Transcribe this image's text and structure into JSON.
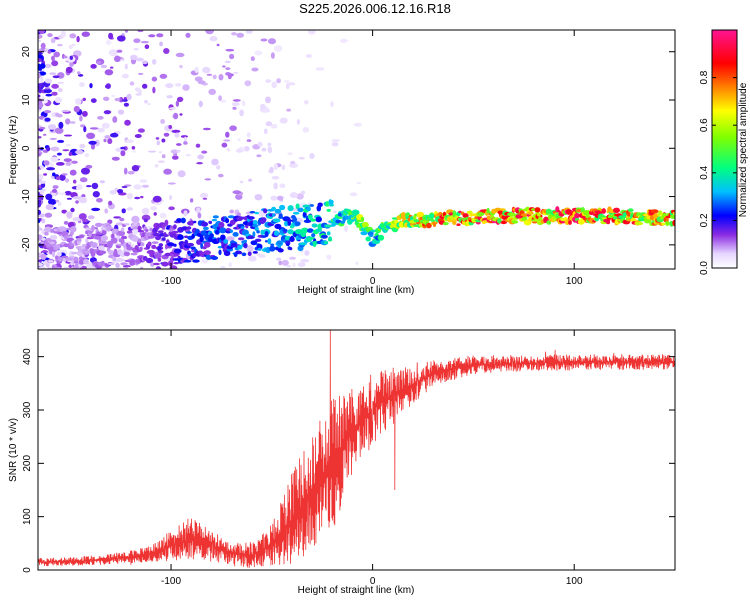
{
  "figure": {
    "title": "S225.2026.006.12.16.R18"
  },
  "colors": {
    "snr_line": "#ee3333",
    "axes": "#000000"
  },
  "chart_data": [
    {
      "type": "heatmap",
      "xlabel": "Height of straight line (km)",
      "ylabel": "Frequency (Hz)",
      "xlim": [
        -166,
        150
      ],
      "ylim": [
        -25,
        24.5
      ],
      "xticks": [
        -100,
        0,
        100
      ],
      "yticks": [
        -20,
        -10,
        0,
        10,
        20
      ],
      "colorbar": {
        "label": "Normalized spectral amplitude",
        "range": [
          0,
          1
        ],
        "ticks": [
          "0.0",
          "0.2",
          "0.4",
          "0.6",
          "0.8"
        ],
        "tick_values": [
          0,
          0.2,
          0.4,
          0.6,
          0.8
        ]
      },
      "ridge": {
        "x": [
          -166,
          -120,
          -100,
          -80,
          -60,
          -40,
          -30,
          -20,
          -10,
          -5,
          0,
          10,
          20,
          40,
          60,
          80,
          100,
          120,
          150
        ],
        "frequency": [
          -21,
          -20,
          -19.5,
          -18.5,
          -17.5,
          -16.5,
          -16,
          -15,
          -14,
          -16,
          -18.5,
          -15.5,
          -15,
          -14.5,
          -14,
          -14,
          -14,
          -14,
          -14.5
        ],
        "amplitude": [
          0.1,
          0.12,
          0.2,
          0.28,
          0.3,
          0.35,
          0.4,
          0.45,
          0.55,
          0.6,
          0.45,
          0.6,
          0.75,
          0.85,
          0.92,
          0.88,
          0.9,
          0.85,
          0.8
        ]
      }
    },
    {
      "type": "line",
      "xlabel": "Height of straight line (km)",
      "ylabel": "SNR (10 * v/v)",
      "xlim": [
        -166,
        150
      ],
      "ylim": [
        0,
        450
      ],
      "xticks": [
        -100,
        0,
        100
      ],
      "yticks": [
        0,
        100,
        200,
        300,
        400
      ],
      "series": [
        {
          "x": [
            -166,
            -150,
            -130,
            -110,
            -100,
            -90,
            -80,
            -70,
            -60,
            -50,
            -40,
            -30,
            -20,
            -10,
            0,
            10,
            20,
            30,
            50,
            80,
            110,
            150
          ],
          "y": [
            15,
            16,
            20,
            30,
            45,
            60,
            45,
            30,
            28,
            45,
            95,
            150,
            200,
            260,
            300,
            330,
            345,
            370,
            385,
            388,
            390,
            390
          ],
          "spread": [
            8,
            8,
            10,
            15,
            30,
            40,
            30,
            20,
            25,
            40,
            90,
            110,
            130,
            80,
            70,
            50,
            35,
            25,
            18,
            15,
            15,
            15
          ]
        }
      ],
      "annotations": [
        {
          "x": -21,
          "y": 450,
          "label": ""
        },
        {
          "x": 11,
          "y": 150,
          "label": ""
        }
      ]
    }
  ]
}
